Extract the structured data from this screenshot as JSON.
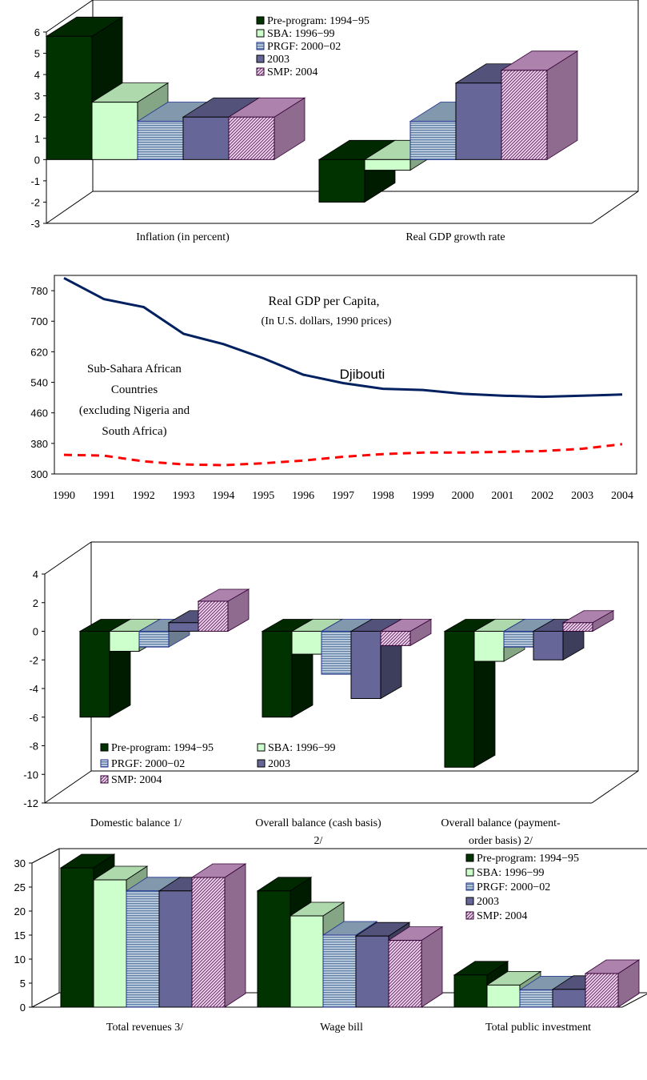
{
  "colors": {
    "pre": "#003300",
    "sba": "#ccffcc",
    "prgf": "#99b3cc",
    "y2003": "#666699",
    "smp": "#cc99cc",
    "djibouti": "#002060",
    "ssa": "#ff0000"
  },
  "chart_data": [
    {
      "id": "c1",
      "type": "bar",
      "title": "",
      "categories": [
        "Inflation (in percent)",
        "Real GDP growth rate"
      ],
      "series": [
        {
          "name": "Pre-program: 1994−95",
          "key": "pre",
          "values": [
            5.8,
            -2.0
          ]
        },
        {
          "name": "SBA: 1996−99",
          "key": "sba",
          "values": [
            2.7,
            -0.5
          ]
        },
        {
          "name": "PRGF: 2000−02",
          "key": "prgf",
          "values": [
            1.8,
            1.8
          ]
        },
        {
          "name": "2003",
          "key": "y2003",
          "values": [
            2.0,
            3.6
          ]
        },
        {
          "name": "SMP: 2004",
          "key": "smp",
          "values": [
            2.0,
            4.2
          ]
        }
      ],
      "ylim": [
        -3,
        6
      ],
      "yticks": [
        "-3",
        "-2",
        "-1",
        "0",
        "1",
        "2",
        "3",
        "4",
        "5",
        "6"
      ],
      "legend": "top-center"
    },
    {
      "id": "c2",
      "type": "line",
      "title": "Real GDP per Capita,",
      "subtitle": "(In U.S. dollars, 1990 prices)",
      "x": [
        "1990",
        "1991",
        "1992",
        "1993",
        "1994",
        "1995",
        "1996",
        "1997",
        "1998",
        "1999",
        "2000",
        "2001",
        "2002",
        "2003",
        "2004"
      ],
      "series": [
        {
          "name": "Djibouti",
          "key": "djibouti",
          "values": [
            813,
            758,
            737,
            667,
            640,
            603,
            560,
            538,
            523,
            520,
            510,
            505,
            502,
            505,
            508
          ]
        },
        {
          "name_lines": [
            "Sub-Sahara African",
            "Countries",
            "(excluding Nigeria and",
            "South Africa)"
          ],
          "key": "ssa",
          "values": [
            350,
            348,
            333,
            325,
            323,
            328,
            335,
            345,
            352,
            356,
            356,
            358,
            360,
            366,
            378
          ]
        }
      ],
      "ylim": [
        300,
        820
      ],
      "yticks": [
        "300",
        "380",
        "460",
        "540",
        "620",
        "700",
        "780"
      ]
    },
    {
      "id": "c3",
      "type": "bar",
      "title": "",
      "categories": [
        "Domestic balance 1/",
        "Overall balance (cash basis) 2/",
        "Overall balance (payment-order basis) 2/"
      ],
      "category_lines": [
        [
          "Domestic balance 1/"
        ],
        [
          "Overall balance (cash basis)",
          "2/"
        ],
        [
          "Overall balance (payment-",
          "order basis) 2/"
        ]
      ],
      "series": [
        {
          "name": "Pre-program: 1994−95",
          "key": "pre",
          "values": [
            -6.0,
            -6.0,
            -9.5
          ]
        },
        {
          "name": "SBA: 1996−99",
          "key": "sba",
          "values": [
            -1.4,
            -1.6,
            -2.1
          ]
        },
        {
          "name": "PRGF: 2000−02",
          "key": "prgf",
          "values": [
            -1.1,
            -3.0,
            -1.1
          ]
        },
        {
          "name": "2003",
          "key": "y2003",
          "values": [
            0.6,
            -4.7,
            -2.0
          ]
        },
        {
          "name": "SMP: 2004",
          "key": "smp",
          "values": [
            2.1,
            -1.0,
            0.6
          ]
        }
      ],
      "ylim": [
        -12,
        4
      ],
      "yticks": [
        "-12",
        "-10",
        "-8",
        "-6",
        "-4",
        "-2",
        "0",
        "2",
        "4"
      ],
      "legend": "bottom-left"
    },
    {
      "id": "c4",
      "type": "bar",
      "title": "",
      "categories": [
        "Total revenues 3/",
        "Wage bill",
        "Total public investment"
      ],
      "series": [
        {
          "name": "Pre-program: 1994−95",
          "key": "pre",
          "values": [
            29.0,
            24.2,
            6.7
          ]
        },
        {
          "name": "SBA: 1996−99",
          "key": "sba",
          "values": [
            26.5,
            19.0,
            4.6
          ]
        },
        {
          "name": "PRGF: 2000−02",
          "key": "prgf",
          "values": [
            24.2,
            15.0,
            3.6
          ]
        },
        {
          "name": "2003",
          "key": "y2003",
          "values": [
            24.2,
            14.8,
            3.7
          ]
        },
        {
          "name": "SMP: 2004",
          "key": "smp",
          "values": [
            27.0,
            13.9,
            7.0
          ]
        }
      ],
      "ylim": [
        0,
        30
      ],
      "yticks": [
        "0",
        "5",
        "10",
        "15",
        "20",
        "25",
        "30"
      ],
      "legend": "top-right"
    }
  ]
}
